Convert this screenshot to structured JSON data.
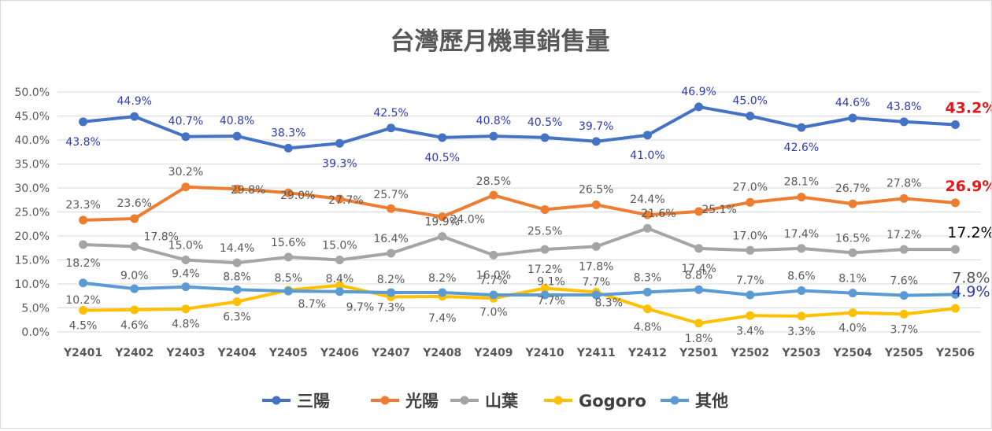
{
  "chart_data": {
    "type": "line",
    "title": "台灣歷月機車銷售量",
    "xlabel": "",
    "ylabel": "",
    "categories": [
      "Y2401",
      "Y2402",
      "Y2403",
      "Y2404",
      "Y2405",
      "Y2406",
      "Y2407",
      "Y2408",
      "Y2409",
      "Y2410",
      "Y2411",
      "Y2412",
      "Y2501",
      "Y2502",
      "Y2503",
      "Y2504",
      "Y2505",
      "Y2506"
    ],
    "ylim": [
      0,
      50
    ],
    "yticks": [
      "0.0%",
      "5.0%",
      "10.0%",
      "15.0%",
      "20.0%",
      "25.0%",
      "30.0%",
      "35.0%",
      "40.0%",
      "45.0%",
      "50.0%"
    ],
    "grid": true,
    "legend_position": "bottom",
    "series": [
      {
        "name": "三陽",
        "color": "#4472c4",
        "label_color": "#2e3bb5",
        "values": [
          43.8,
          44.9,
          40.7,
          40.8,
          38.3,
          39.3,
          42.5,
          40.5,
          40.8,
          40.5,
          39.7,
          41.0,
          46.9,
          45.0,
          42.6,
          44.6,
          43.8,
          43.2
        ],
        "labels": [
          "43.8%",
          "44.9%",
          "40.7%",
          "40.8%",
          "38.3%",
          "39.3%",
          "42.5%",
          "40.5%",
          "40.8%",
          "40.5%",
          "39.7%",
          "41.0%",
          "46.9%",
          "45.0%",
          "42.6%",
          "44.6%",
          "43.8%",
          "43.2%"
        ],
        "last_label_color": "#e31a1c"
      },
      {
        "name": "光陽",
        "color": "#ed7d31",
        "label_color": "#595959",
        "values": [
          23.3,
          23.6,
          30.2,
          29.8,
          29.0,
          27.7,
          25.7,
          24.0,
          28.5,
          25.5,
          26.5,
          24.4,
          25.1,
          27.0,
          28.1,
          26.7,
          27.8,
          26.9
        ],
        "labels": [
          "23.3%",
          "23.6%",
          "30.2%",
          "29.8%",
          "29.0%",
          "27.7%",
          "25.7%",
          "24.0%",
          "28.5%",
          "25.5%",
          "26.5%",
          "24.4%",
          "25.1%",
          "27.0%",
          "28.1%",
          "26.7%",
          "27.8%",
          "26.9%"
        ],
        "last_label_color": "#e31a1c"
      },
      {
        "name": "山葉",
        "color": "#a5a5a5",
        "label_color": "#595959",
        "values": [
          18.2,
          17.8,
          15.0,
          14.4,
          15.6,
          15.0,
          16.4,
          19.9,
          16.0,
          17.2,
          17.8,
          21.6,
          17.4,
          17.0,
          17.4,
          16.5,
          17.2,
          17.2
        ],
        "labels": [
          "18.2%",
          "17.8%",
          "15.0%",
          "14.4%",
          "15.6%",
          "15.0%",
          "16.4%",
          "19.9%",
          "16.0%",
          "17.2%",
          "17.8%",
          "21.6%",
          "17.4%",
          "17.0%",
          "17.4%",
          "16.5%",
          "17.2%",
          "17.2%"
        ],
        "last_label_color": "#000000"
      },
      {
        "name": "Gogoro",
        "color": "#ffc000",
        "label_color": "#595959",
        "values": [
          4.5,
          4.6,
          4.8,
          6.3,
          8.7,
          9.7,
          7.3,
          7.4,
          7.0,
          9.1,
          8.3,
          4.8,
          1.8,
          3.4,
          3.3,
          4.0,
          3.7,
          4.9
        ],
        "labels": [
          "4.5%",
          "4.6%",
          "4.8%",
          "6.3%",
          "8.7%",
          "9.7%",
          "7.3%",
          "7.4%",
          "7.0%",
          "9.1%",
          "8.3%",
          "4.8%",
          "1.8%",
          "3.4%",
          "3.3%",
          "4.0%",
          "3.7%",
          "4.9%"
        ],
        "last_label_color": "#2e3bb5"
      },
      {
        "name": "其他",
        "color": "#5b9bd5",
        "label_color": "#595959",
        "values": [
          10.2,
          9.0,
          9.4,
          8.8,
          8.5,
          8.4,
          8.2,
          8.2,
          7.7,
          7.7,
          7.7,
          8.3,
          8.8,
          7.7,
          8.6,
          8.1,
          7.6,
          7.8
        ],
        "labels": [
          "10.2%",
          "9.0%",
          "9.4%",
          "8.8%",
          "8.5%",
          "8.4%",
          "8.2%",
          "8.2%",
          "7.7%",
          "7.7%",
          "7.7%",
          "8.3%",
          "8.8%",
          "7.7%",
          "8.6%",
          "8.1%",
          "7.6%",
          "7.8%"
        ],
        "last_label_color": "#595959"
      }
    ]
  }
}
